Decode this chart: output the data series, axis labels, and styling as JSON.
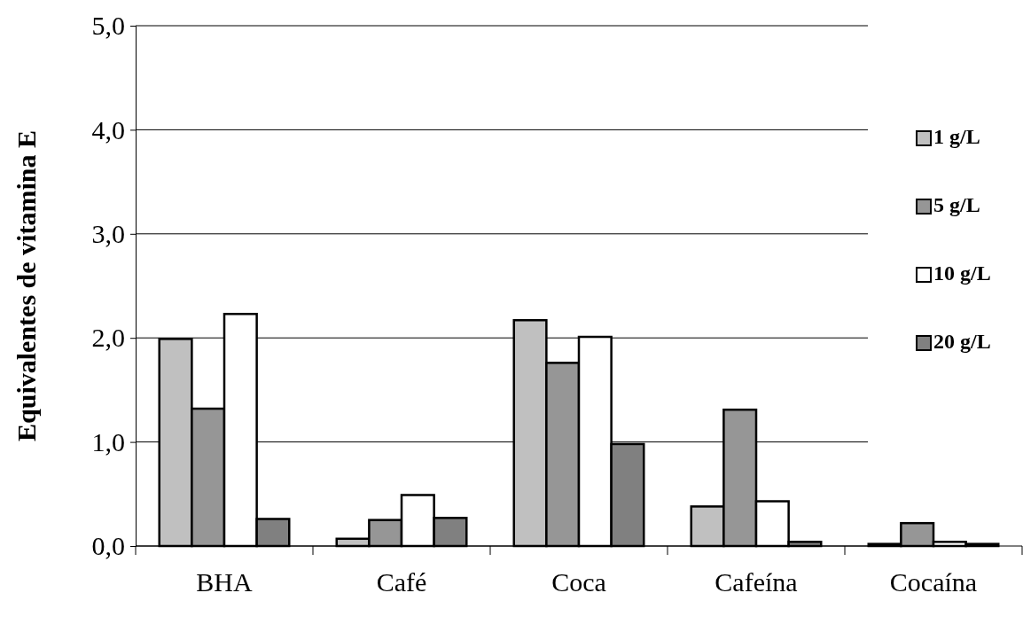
{
  "chart_data": {
    "type": "bar",
    "ylabel": "Equivalentes de vitamina E",
    "categories": [
      "BHA",
      "Café",
      "Coca",
      "Cafeína",
      "Cocaína"
    ],
    "series": [
      {
        "name": "1 g/L",
        "color": "#c0c0c0",
        "values": [
          1.99,
          0.07,
          2.17,
          0.38,
          0.02
        ]
      },
      {
        "name": "5 g/L",
        "color": "#969696",
        "values": [
          1.32,
          0.25,
          1.76,
          1.31,
          0.22
        ]
      },
      {
        "name": "10 g/L",
        "color": "#ffffff",
        "values": [
          2.23,
          0.49,
          2.01,
          0.43,
          0.04
        ]
      },
      {
        "name": "20 g/L",
        "color": "#808080",
        "values": [
          0.26,
          0.27,
          0.98,
          0.04,
          0.02
        ]
      }
    ],
    "ylim": [
      0,
      5
    ],
    "yticks": [
      {
        "value": 0,
        "label": "0,0"
      },
      {
        "value": 1,
        "label": "1,0"
      },
      {
        "value": 2,
        "label": "2,0"
      },
      {
        "value": 3,
        "label": "3,0"
      },
      {
        "value": 4,
        "label": "4,0"
      },
      {
        "value": 5,
        "label": "5,0"
      }
    ],
    "grid": "y",
    "legend": "right"
  }
}
